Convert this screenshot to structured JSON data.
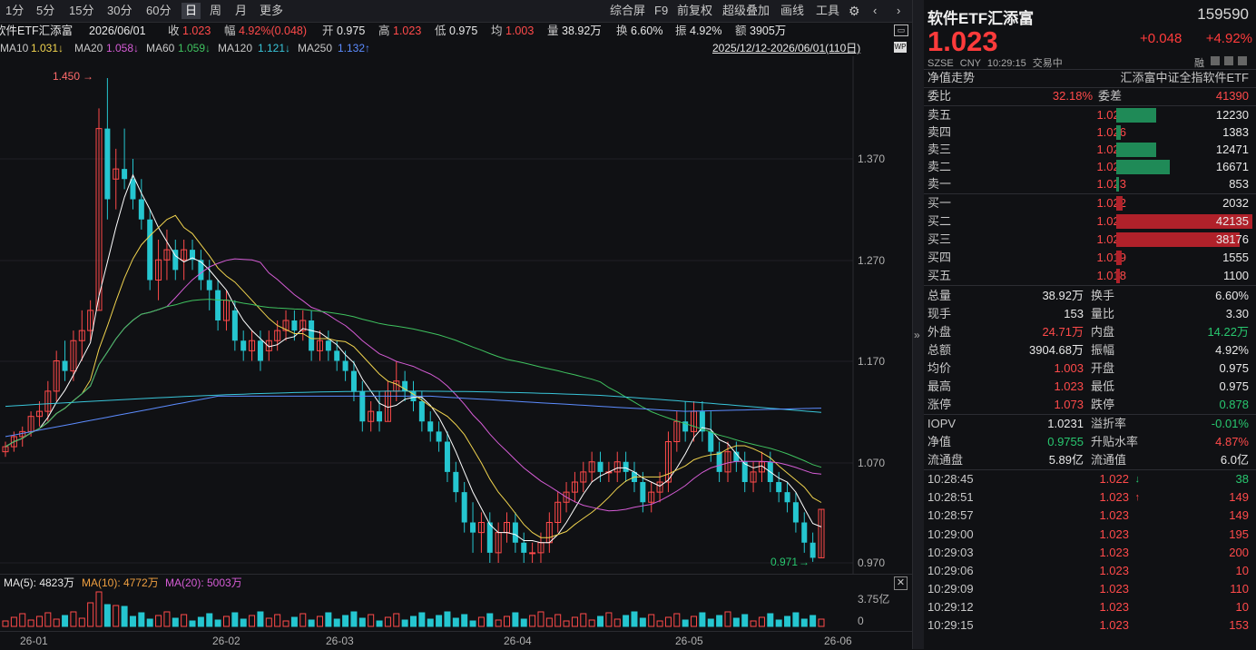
{
  "toolbar": {
    "periods": [
      "1分",
      "5分",
      "15分",
      "30分",
      "60分",
      "日",
      "周",
      "月",
      "更多"
    ],
    "active": "日",
    "right": [
      "综合屏",
      "F9",
      "前复权",
      "超级叠加",
      "画线",
      "工具"
    ]
  },
  "info": {
    "name": "软件ETF汇添富",
    "date": "2026/06/01",
    "close_label": "收",
    "close": "1.023",
    "amp_label": "幅",
    "amp": "4.92%(0.048)",
    "open_label": "开",
    "open": "0.975",
    "high_label": "高",
    "high": "1.023",
    "low_label": "低",
    "low": "0.975",
    "avg_label": "均",
    "avg": "1.003",
    "vol_label": "量",
    "vol": "38.92万",
    "turn_label": "换",
    "turn": "6.60%",
    "swing_label": "振",
    "swing": "4.92%",
    "amount_label": "额",
    "amount": "3905万"
  },
  "ma": {
    "ma10": "MA10",
    "ma10_v": "1.031↓",
    "ma20": "MA20",
    "ma20_v": "1.058↓",
    "ma60": "MA60",
    "ma60_v": "1.059↓",
    "ma120": "MA120",
    "ma120_v": "1.121↓",
    "ma250": "MA250",
    "ma250_v": "1.132↑",
    "range": "2025/12/12-2026/06/01(110日)"
  },
  "chart_labels": {
    "high_mark": "1.450",
    "low_mark": "0.971"
  },
  "yaxis": [
    "1.370",
    "1.270",
    "1.170",
    "1.070",
    "0.970"
  ],
  "volume": {
    "ma5": "MA(5): 4823万",
    "ma10": "MA(10): 4772万",
    "ma20": "MA(20): 5003万",
    "ymax": "3.75亿",
    "ymin": "0"
  },
  "xaxis": [
    "26-01",
    "26-02",
    "26-03",
    "26-04",
    "26-05",
    "26-06"
  ],
  "panel": {
    "name": "软件ETF汇添富",
    "code": "159590",
    "price": "1.023",
    "change": "+0.048",
    "pct": "+4.92%",
    "market": "SZSE",
    "currency": "CNY",
    "time": "10:29:15",
    "status": "交易中",
    "rong": "融",
    "nav_trend": "净值走势",
    "index_name": "汇添富中证全指软件ETF",
    "weibi_label": "委比",
    "weibi": "32.18%",
    "weicha_label": "委差",
    "weicha": "41390",
    "asks": [
      {
        "label": "卖五",
        "price": "1.027",
        "vol": "12230"
      },
      {
        "label": "卖四",
        "price": "1.026",
        "vol": "1383"
      },
      {
        "label": "卖三",
        "price": "1.025",
        "vol": "12471"
      },
      {
        "label": "卖二",
        "price": "1.024",
        "vol": "16671"
      },
      {
        "label": "卖一",
        "price": "1.023",
        "vol": "853"
      }
    ],
    "bids": [
      {
        "label": "买一",
        "price": "1.022",
        "vol": "2032"
      },
      {
        "label": "买二",
        "price": "1.021",
        "vol": "42135"
      },
      {
        "label": "买三",
        "price": "1.020",
        "vol": "38176"
      },
      {
        "label": "买四",
        "price": "1.019",
        "vol": "1555"
      },
      {
        "label": "买五",
        "price": "1.018",
        "vol": "1100"
      }
    ],
    "stats": [
      {
        "l1": "总量",
        "v1": "38.92万",
        "c1": "white",
        "l2": "换手",
        "v2": "6.60%",
        "c2": "white"
      },
      {
        "l1": "现手",
        "v1": "153",
        "c1": "white",
        "l2": "量比",
        "v2": "3.30",
        "c2": "white"
      },
      {
        "l1": "外盘",
        "v1": "24.71万",
        "c1": "red",
        "l2": "内盘",
        "v2": "14.22万",
        "c2": "green"
      },
      {
        "l1": "总额",
        "v1": "3904.68万",
        "c1": "white",
        "l2": "振幅",
        "v2": "4.92%",
        "c2": "white"
      },
      {
        "l1": "均价",
        "v1": "1.003",
        "c1": "red",
        "l2": "开盘",
        "v2": "0.975",
        "c2": "white"
      },
      {
        "l1": "最高",
        "v1": "1.023",
        "c1": "red",
        "l2": "最低",
        "v2": "0.975",
        "c2": "white"
      },
      {
        "l1": "涨停",
        "v1": "1.073",
        "c1": "red",
        "l2": "跌停",
        "v2": "0.878",
        "c2": "green"
      }
    ],
    "etf": [
      {
        "l1": "IOPV",
        "v1": "1.0231",
        "c1": "white",
        "l2": "溢折率",
        "v2": "-0.01%",
        "c2": "green"
      },
      {
        "l1": "净值",
        "v1": "0.9755",
        "c1": "green",
        "l2": "升贴水率",
        "v2": "4.87%",
        "c2": "red"
      },
      {
        "l1": "流通盘",
        "v1": "5.89亿",
        "c1": "white",
        "l2": "流通值",
        "v2": "6.0亿",
        "c2": "white"
      }
    ],
    "ticks": [
      {
        "time": "10:28:45",
        "price": "1.022",
        "arrow": "↓",
        "vol": "38",
        "vc": "green"
      },
      {
        "time": "10:28:51",
        "price": "1.023",
        "arrow": "↑",
        "vol": "149",
        "vc": "red"
      },
      {
        "time": "10:28:57",
        "price": "1.023",
        "arrow": "",
        "vol": "149",
        "vc": "red"
      },
      {
        "time": "10:29:00",
        "price": "1.023",
        "arrow": "",
        "vol": "195",
        "vc": "red"
      },
      {
        "time": "10:29:03",
        "price": "1.023",
        "arrow": "",
        "vol": "200",
        "vc": "red"
      },
      {
        "time": "10:29:06",
        "price": "1.023",
        "arrow": "",
        "vol": "10",
        "vc": "red"
      },
      {
        "time": "10:29:09",
        "price": "1.023",
        "arrow": "",
        "vol": "110",
        "vc": "red"
      },
      {
        "time": "10:29:12",
        "price": "1.023",
        "arrow": "",
        "vol": "10",
        "vc": "red"
      },
      {
        "time": "10:29:15",
        "price": "1.023",
        "arrow": "",
        "vol": "153",
        "vc": "red"
      }
    ]
  },
  "colors": {
    "up": "#ff4a4a",
    "down": "#25c6d0",
    "ask_bar": "#1f8a57",
    "bid_bar": "#b0212a"
  }
}
